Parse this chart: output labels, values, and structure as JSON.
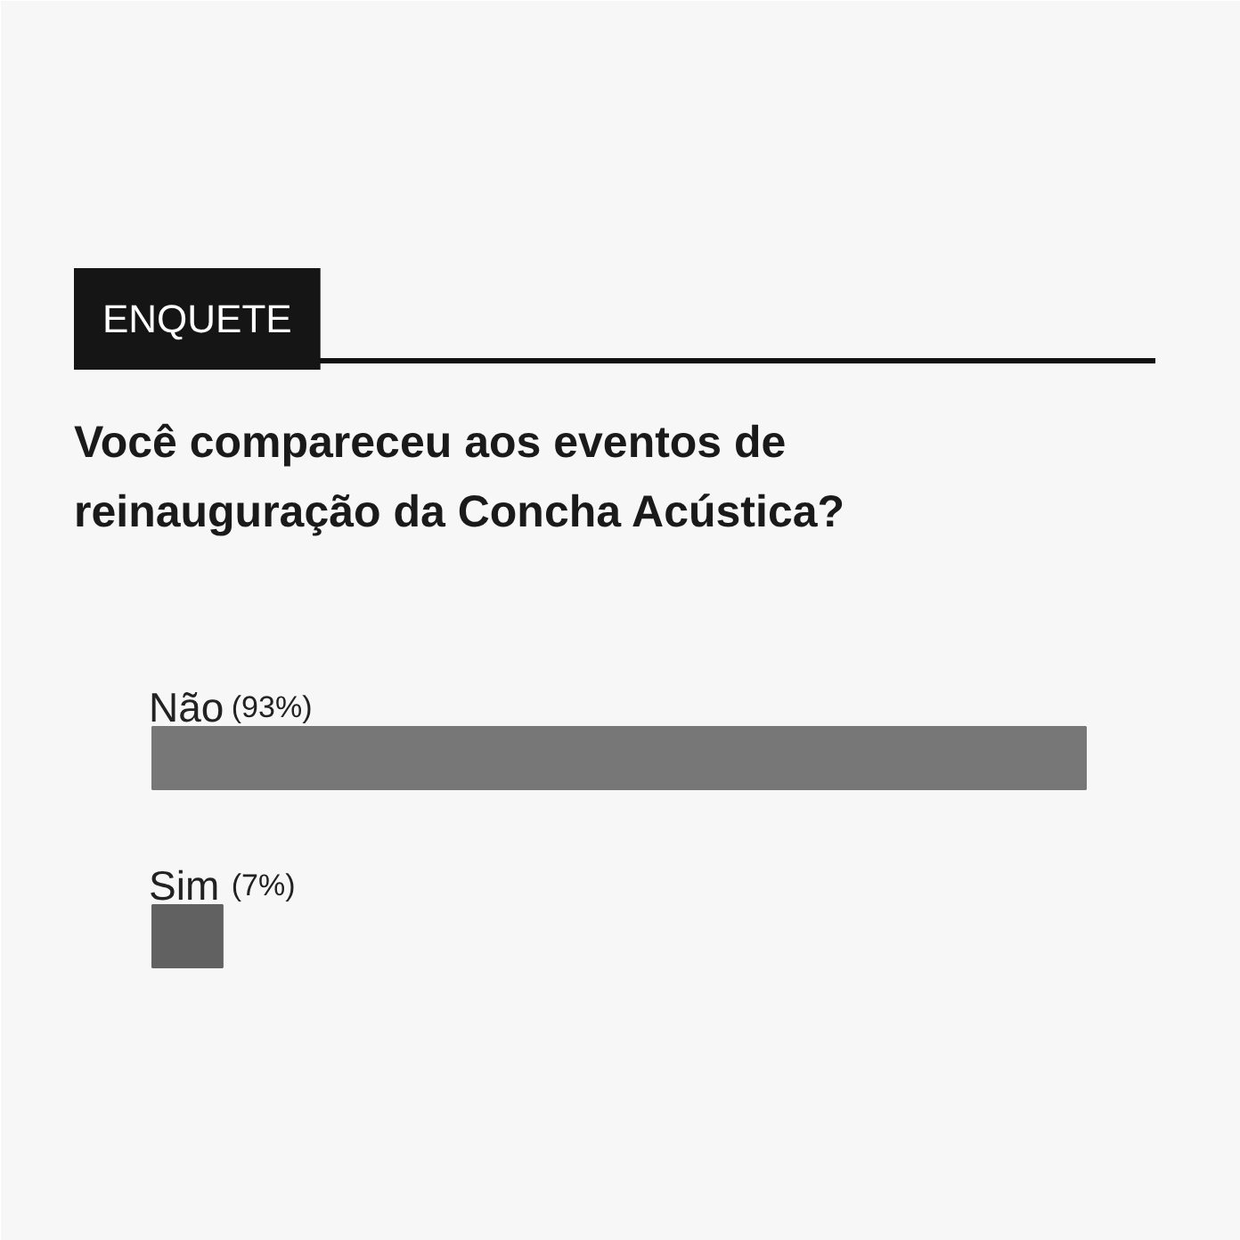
{
  "chart_data": {
    "type": "bar",
    "orientation": "horizontal",
    "title": "Você compareceu aos eventos de reinauguração da Concha Acústica?",
    "annotations": [
      "ENQUETE"
    ],
    "categories": [
      "Não",
      "Sim"
    ],
    "values": [
      93,
      7
    ],
    "value_labels": [
      "(93%)",
      "(7%)"
    ],
    "colors": [
      "#777777",
      "#616161"
    ],
    "grid": false
  }
}
